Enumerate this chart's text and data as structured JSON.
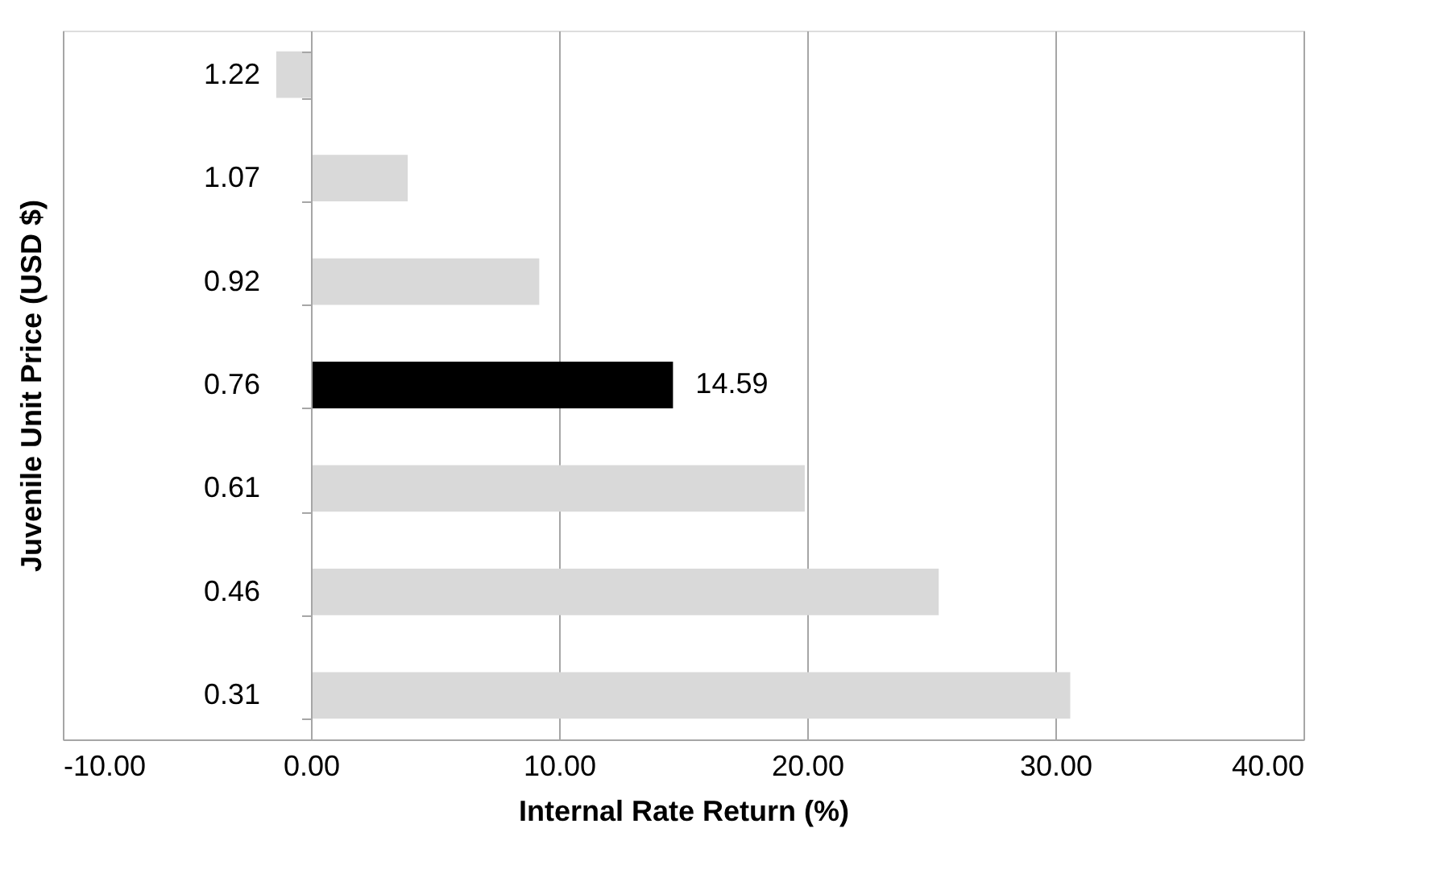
{
  "chart_data": {
    "type": "bar",
    "orientation": "horizontal",
    "xlabel": "Internal Rate Return (%)",
    "ylabel": "Juvenile Unit Price (USD $)",
    "categories": [
      "1.22",
      "1.07",
      "0.92",
      "0.76",
      "0.61",
      "0.46",
      "0.31"
    ],
    "values": [
      -1.4,
      3.9,
      9.2,
      14.59,
      19.9,
      25.3,
      30.6
    ],
    "colors": [
      "#d9d9d9",
      "#d9d9d9",
      "#d9d9d9",
      "#000000",
      "#d9d9d9",
      "#d9d9d9",
      "#d9d9d9"
    ],
    "value_labels": [
      null,
      null,
      null,
      "14.59",
      null,
      null,
      null
    ],
    "xlim": [
      -10,
      40
    ],
    "xticks": [
      {
        "value": -10,
        "label": "-10.00"
      },
      {
        "value": 0,
        "label": "0.00"
      },
      {
        "value": 10,
        "label": "10.00"
      },
      {
        "value": 20,
        "label": "20.00"
      },
      {
        "value": 30,
        "label": "30.00"
      },
      {
        "value": 40,
        "label": "40.00"
      }
    ],
    "grid": "x"
  }
}
